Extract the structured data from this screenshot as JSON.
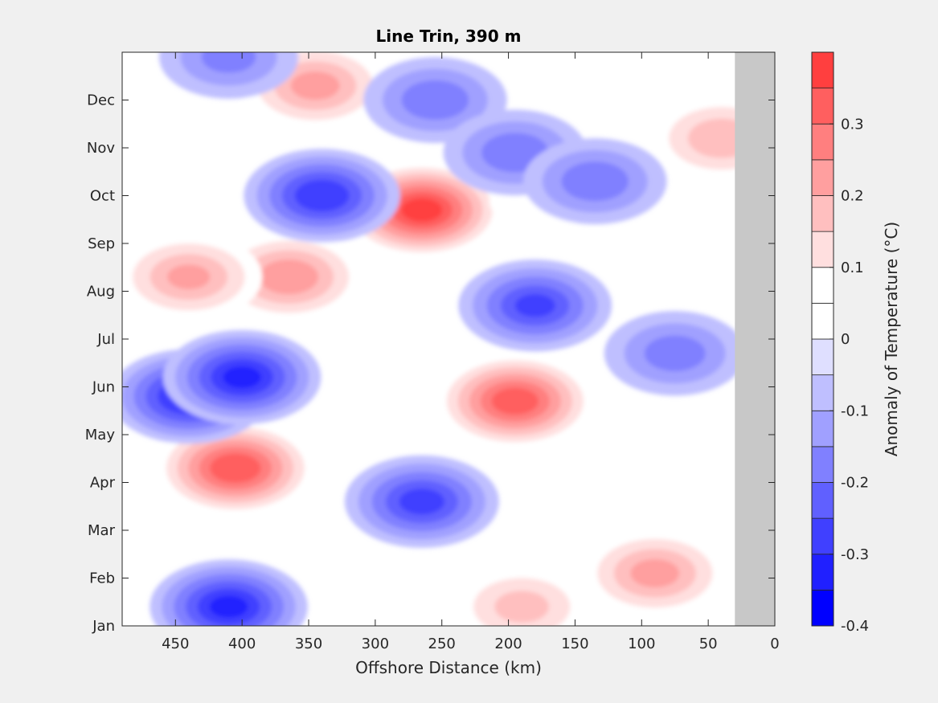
{
  "chart_data": {
    "type": "heatmap",
    "title": "Line Trin, 390 m",
    "xlabel": "Offshore Distance (km)",
    "ylabel": "",
    "x_axis_reversed": true,
    "xlim": [
      0,
      490
    ],
    "xticks": [
      450,
      400,
      350,
      300,
      250,
      200,
      150,
      100,
      50,
      0
    ],
    "yticks": [
      "Jan",
      "Feb",
      "Mar",
      "Apr",
      "May",
      "Jun",
      "Jul",
      "Aug",
      "Sep",
      "Oct",
      "Nov",
      "Dec"
    ],
    "no_data_region_km": [
      0,
      30
    ],
    "colorbar": {
      "label": "Anomaly of Temperature (°C)",
      "ticks": [
        "0.3",
        "0.2",
        "0.1",
        "0",
        "-0.1",
        "-0.2",
        "-0.3",
        "-0.4"
      ],
      "range": [
        -0.4,
        0.4
      ],
      "levels": [
        {
          "min": -0.4,
          "max": -0.35,
          "color": "#0000ff"
        },
        {
          "min": -0.35,
          "max": -0.3,
          "color": "#2020ff"
        },
        {
          "min": -0.3,
          "max": -0.25,
          "color": "#4040ff"
        },
        {
          "min": -0.25,
          "max": -0.2,
          "color": "#6060ff"
        },
        {
          "min": -0.2,
          "max": -0.15,
          "color": "#8080ff"
        },
        {
          "min": -0.15,
          "max": -0.1,
          "color": "#a0a0ff"
        },
        {
          "min": -0.1,
          "max": -0.05,
          "color": "#bfbfff"
        },
        {
          "min": -0.05,
          "max": 0.0,
          "color": "#dfdfff"
        },
        {
          "min": 0.0,
          "max": 0.05,
          "color": "#ffffff"
        },
        {
          "min": 0.05,
          "max": 0.1,
          "color": "#ffffff"
        },
        {
          "min": 0.1,
          "max": 0.15,
          "color": "#ffdfdf"
        },
        {
          "min": 0.15,
          "max": 0.2,
          "color": "#ffbfbf"
        },
        {
          "min": 0.2,
          "max": 0.25,
          "color": "#ff9f9f"
        },
        {
          "min": 0.25,
          "max": 0.3,
          "color": "#ff7f7f"
        },
        {
          "min": 0.3,
          "max": 0.35,
          "color": "#ff5f5f"
        },
        {
          "min": 0.35,
          "max": 0.4,
          "color": "#ff3f3f"
        }
      ]
    },
    "features": [
      {
        "kind": "warm",
        "x_km": 405,
        "month": 3.3,
        "peak": 0.35
      },
      {
        "kind": "warm",
        "x_km": 265,
        "month": 8.7,
        "peak": 0.38
      },
      {
        "kind": "warm",
        "x_km": 195,
        "month": 4.7,
        "peak": 0.34
      },
      {
        "kind": "warm",
        "x_km": 365,
        "month": 7.3,
        "peak": 0.25
      },
      {
        "kind": "warm",
        "x_km": 440,
        "month": 7.3,
        "peak": 0.22
      },
      {
        "kind": "warm",
        "x_km": 345,
        "month": 11.3,
        "peak": 0.23
      },
      {
        "kind": "warm",
        "x_km": 90,
        "month": 1.1,
        "peak": 0.23
      },
      {
        "kind": "warm",
        "x_km": 190,
        "month": 0.4,
        "peak": 0.18
      },
      {
        "kind": "warm",
        "x_km": 40,
        "month": 10.2,
        "peak": 0.2
      },
      {
        "kind": "warm",
        "x_km": 175,
        "month": 8.9,
        "peak": 0.1
      },
      {
        "kind": "cold",
        "x_km": 440,
        "month": 4.8,
        "peak": -0.32
      },
      {
        "kind": "cold",
        "x_km": 400,
        "month": 5.2,
        "peak": -0.32
      },
      {
        "kind": "cold",
        "x_km": 410,
        "month": 0.4,
        "peak": -0.32
      },
      {
        "kind": "cold",
        "x_km": 340,
        "month": 9.0,
        "peak": -0.3
      },
      {
        "kind": "cold",
        "x_km": 265,
        "month": 2.6,
        "peak": -0.28
      },
      {
        "kind": "cold",
        "x_km": 180,
        "month": 6.7,
        "peak": -0.27
      },
      {
        "kind": "cold",
        "x_km": 255,
        "month": 11.0,
        "peak": -0.2
      },
      {
        "kind": "cold",
        "x_km": 195,
        "month": 9.9,
        "peak": -0.2
      },
      {
        "kind": "cold",
        "x_km": 135,
        "month": 9.3,
        "peak": -0.2
      },
      {
        "kind": "cold",
        "x_km": 75,
        "month": 5.7,
        "peak": -0.19
      },
      {
        "kind": "cold",
        "x_km": 410,
        "month": 11.9,
        "peak": -0.18
      }
    ]
  }
}
